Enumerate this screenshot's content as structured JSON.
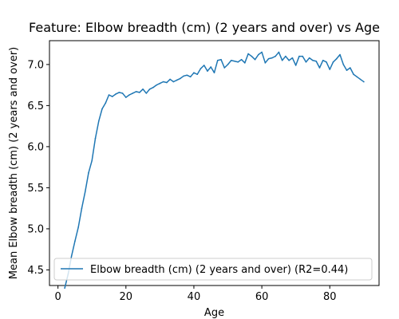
{
  "chart_data": {
    "type": "line",
    "title": "Feature: Elbow breadth (cm) (2 years and over) vs Age",
    "xlabel": "Age",
    "ylabel": "Mean Elbow breadth (cm) (2 years and over)",
    "xlim": [
      -2.5,
      94.5
    ],
    "ylim": [
      4.31,
      7.29
    ],
    "xticks": [
      0,
      20,
      40,
      60,
      80
    ],
    "yticks": [
      4.5,
      5.0,
      5.5,
      6.0,
      6.5,
      7.0
    ],
    "ytick_labels": [
      "4.5",
      "5.0",
      "5.5",
      "6.0",
      "6.5",
      "7.0"
    ],
    "grid": false,
    "legend_position": "lower-left",
    "series": [
      {
        "name": "Elbow breadth (cm) (2 years and over) (R2=0.44)",
        "color": "#1f77b4",
        "x": [
          2,
          3,
          4,
          5,
          6,
          7,
          8,
          9,
          10,
          11,
          12,
          13,
          14,
          15,
          16,
          17,
          18,
          19,
          20,
          21,
          22,
          23,
          24,
          25,
          26,
          27,
          28,
          29,
          30,
          31,
          32,
          33,
          34,
          35,
          36,
          37,
          38,
          39,
          40,
          41,
          42,
          43,
          44,
          45,
          46,
          47,
          48,
          49,
          50,
          51,
          52,
          53,
          54,
          55,
          56,
          57,
          58,
          59,
          60,
          61,
          62,
          63,
          64,
          65,
          66,
          67,
          68,
          69,
          70,
          71,
          72,
          73,
          74,
          75,
          76,
          77,
          78,
          79,
          80,
          81,
          82,
          83,
          84,
          85,
          86,
          87,
          88,
          89,
          90
        ],
        "y": [
          4.28,
          4.45,
          4.67,
          4.85,
          5.02,
          5.25,
          5.45,
          5.68,
          5.83,
          6.1,
          6.31,
          6.46,
          6.53,
          6.63,
          6.61,
          6.64,
          6.66,
          6.65,
          6.6,
          6.63,
          6.65,
          6.67,
          6.66,
          6.7,
          6.65,
          6.7,
          6.72,
          6.75,
          6.77,
          6.79,
          6.78,
          6.82,
          6.79,
          6.81,
          6.83,
          6.86,
          6.87,
          6.85,
          6.9,
          6.88,
          6.95,
          6.99,
          6.92,
          6.97,
          6.9,
          7.05,
          7.06,
          6.96,
          7.0,
          7.05,
          7.04,
          7.03,
          7.06,
          7.02,
          7.13,
          7.1,
          7.06,
          7.12,
          7.15,
          7.02,
          7.07,
          7.08,
          7.1,
          7.15,
          7.05,
          7.1,
          7.05,
          7.08,
          6.99,
          7.1,
          7.1,
          7.03,
          7.08,
          7.05,
          7.04,
          6.96,
          7.05,
          7.03,
          6.94,
          7.03,
          7.07,
          7.12,
          7.0,
          6.93,
          6.96,
          6.88,
          6.85,
          6.82,
          6.79
        ]
      }
    ]
  }
}
